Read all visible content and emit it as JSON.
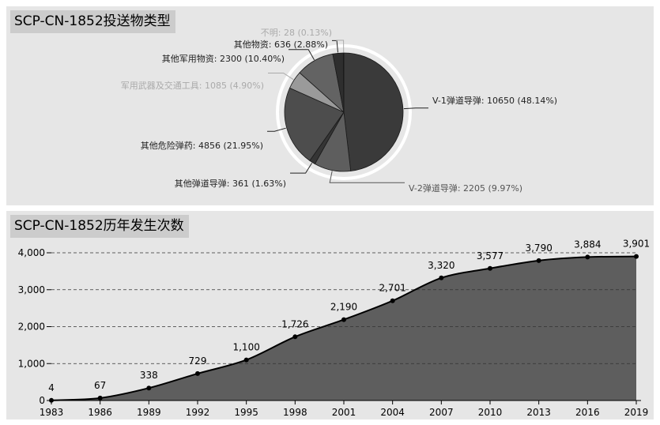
{
  "chart_data": [
    {
      "type": "pie",
      "title": "SCP-CN-1852投送物类型",
      "slices": [
        {
          "label": "V-1弹道导弹: 10650 (48.14%)",
          "value": 10650,
          "color": "#3a3a3a"
        },
        {
          "label": "V-2弹道导弹: 2205 (9.97%)",
          "value": 2205,
          "color": "#5e5e5e"
        },
        {
          "label": "其他弹道导弹: 361 (1.63%)",
          "value": 361,
          "color": "#353535"
        },
        {
          "label": "其他危险弹药: 4856 (21.95%)",
          "value": 4856,
          "color": "#4d4d4d"
        },
        {
          "label": "军用武器及交通工具: 1085 (4.90%)",
          "value": 1085,
          "color": "#9a9a9a"
        },
        {
          "label": "其他军用物资: 2300 (10.40%)",
          "value": 2300,
          "color": "#636363"
        },
        {
          "label": "其他物资: 636 (2.88%)",
          "value": 636,
          "color": "#2e2e2e"
        },
        {
          "label": "不明: 28 (0.13%)",
          "value": 28,
          "color": "#aaaaaa"
        }
      ]
    },
    {
      "type": "area",
      "title": "SCP-CN-1852历年发生次数",
      "x": [
        1983,
        1986,
        1989,
        1992,
        1995,
        1998,
        2001,
        2004,
        2007,
        2010,
        2013,
        2016,
        2019
      ],
      "values": [
        4,
        67,
        338,
        729,
        1100,
        1726,
        2190,
        2701,
        3320,
        3577,
        3790,
        3884,
        3901
      ],
      "value_labels": [
        "4",
        "67",
        "338",
        "729",
        "1,100",
        "1,726",
        "2,190",
        "2,701",
        "3,320",
        "3,577",
        "3,790",
        "3,884",
        "3,901"
      ],
      "ylim": [
        0,
        4000
      ],
      "yticks": [
        0,
        1000,
        2000,
        3000,
        4000
      ],
      "ytick_labels": [
        "0",
        "1,000",
        "2,000",
        "3,000",
        "4,000"
      ],
      "grid": true,
      "fill_color": "#5e5e5e"
    }
  ]
}
